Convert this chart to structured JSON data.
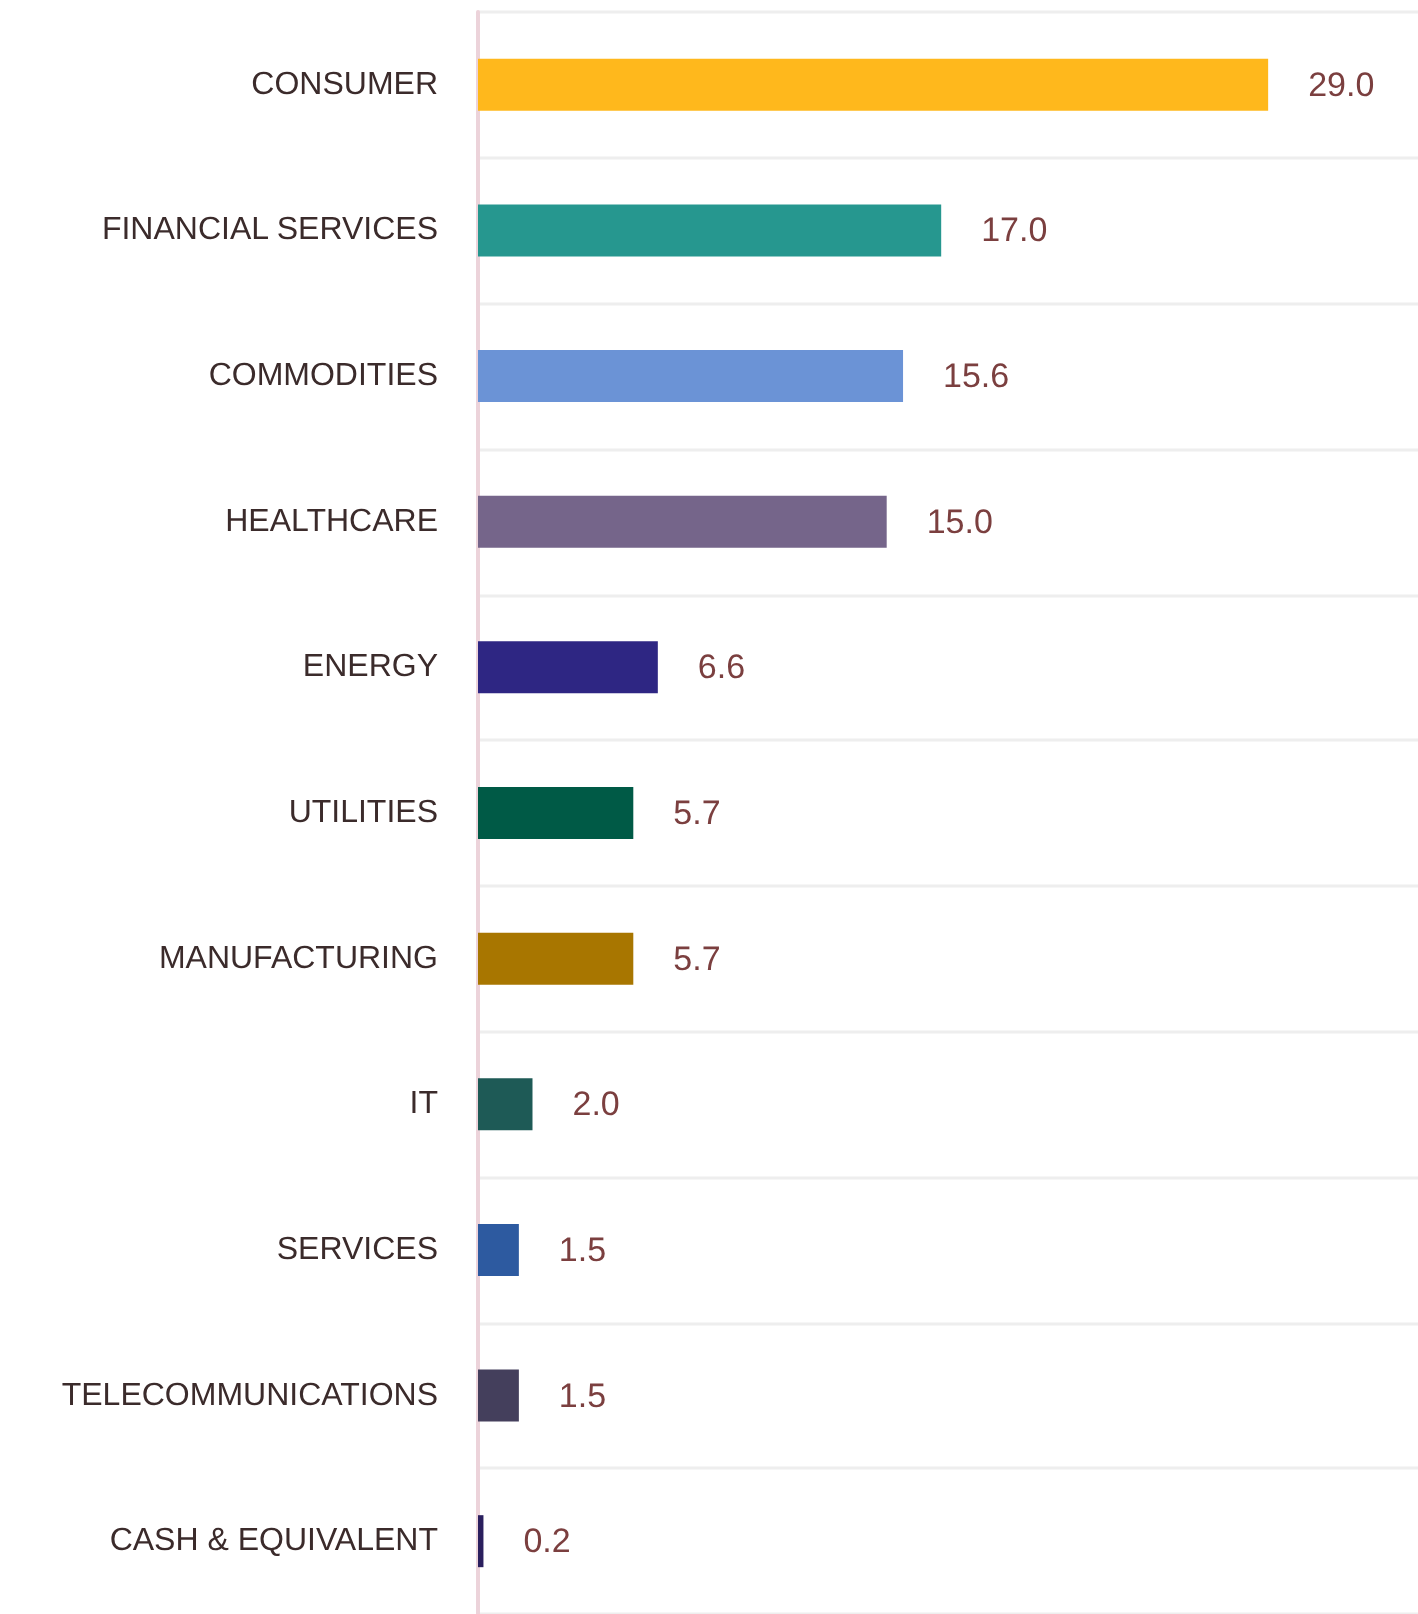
{
  "chart_data": {
    "type": "bar",
    "orientation": "horizontal",
    "categories": [
      "CONSUMER",
      "FINANCIAL SERVICES",
      "COMMODITIES",
      "HEALTHCARE",
      "ENERGY",
      "UTILITIES",
      "MANUFACTURING",
      "IT",
      "SERVICES",
      "TELECOMMUNICATIONS",
      "CASH & EQUIVALENT"
    ],
    "values": [
      29.0,
      17.0,
      15.6,
      15.0,
      6.6,
      5.7,
      5.7,
      2.0,
      1.5,
      1.5,
      0.2
    ],
    "colors": [
      "#ffb81c",
      "#26978f",
      "#6b93d6",
      "#75658a",
      "#2e2683",
      "#005a46",
      "#a87600",
      "#1e5a56",
      "#2d5aa0",
      "#443f5c",
      "#2a1f5e"
    ],
    "value_labels": [
      "29.0",
      "17.0",
      "15.6",
      "15.0",
      "6.6",
      "5.7",
      "5.7",
      "2.0",
      "1.5",
      "1.5",
      "0.2"
    ],
    "xlim": [
      0,
      34.5
    ],
    "tick_labels": "y",
    "grid": "y"
  }
}
